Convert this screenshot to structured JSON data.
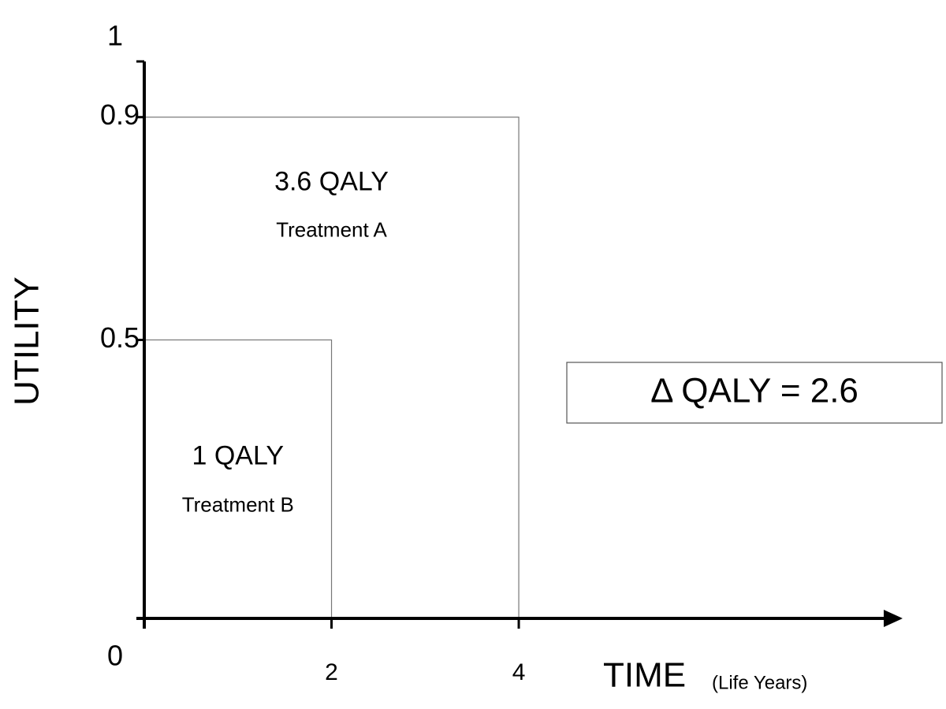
{
  "chart_data": {
    "type": "qaly-rect",
    "y_label": "UTILITY",
    "x_label": "TIME",
    "x_label_unit": "(Life Years)",
    "xlim": [
      0,
      8.1
    ],
    "ylim": [
      0,
      1
    ],
    "xticks": [
      2,
      4
    ],
    "yticks": [
      0,
      0.5,
      0.9,
      1
    ],
    "series": [
      {
        "name": "Treatment A",
        "qaly_label": "3.6 QALY",
        "x": 4,
        "value": 0.9,
        "color": "#777777"
      },
      {
        "name": "Treatment B",
        "qaly_label": "1 QALY",
        "x": 2,
        "value": 0.5,
        "color": "#777777"
      }
    ],
    "annotation": "Δ QALY = 2.6"
  }
}
